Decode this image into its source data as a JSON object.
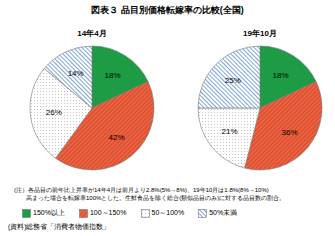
{
  "title": "図表３ 品目別価格転嫁率の比較(全国)",
  "chart_data": [
    {
      "type": "pie",
      "title": "14年4月",
      "categories": [
        "150%以上",
        "100～150%",
        "50～100%",
        "50%未満"
      ],
      "values": [
        18,
        42,
        26,
        14
      ],
      "value_labels": [
        "18%",
        "42%",
        "26%",
        "14%"
      ],
      "colors": [
        "#1e9b45",
        "#e2502e",
        "#ffffff",
        "#5b8fd0"
      ],
      "data_labels": true,
      "legend": "bottom"
    },
    {
      "type": "pie",
      "title": "19年10月",
      "categories": [
        "150%以上",
        "100～150%",
        "50～100%",
        "50%未満"
      ],
      "values": [
        18,
        36,
        21,
        25
      ],
      "value_labels": [
        "18%",
        "36%",
        "21%",
        "25%"
      ],
      "colors": [
        "#1e9b45",
        "#e2502e",
        "#ffffff",
        "#5b8fd0"
      ],
      "data_labels": true,
      "legend": "bottom"
    }
  ],
  "note": [
    "(注）各品目の前年比上昇率が14年4月は前月より2.8%(5%→8%)、19年10月は1.8%(8%→10%)",
    "高まった場合を転嫁率100%とした。生鮮食品を除く総合(類似品目のみ)に対する品目数の割合。"
  ],
  "source": "(資料)総務省「消費者物価指数」"
}
